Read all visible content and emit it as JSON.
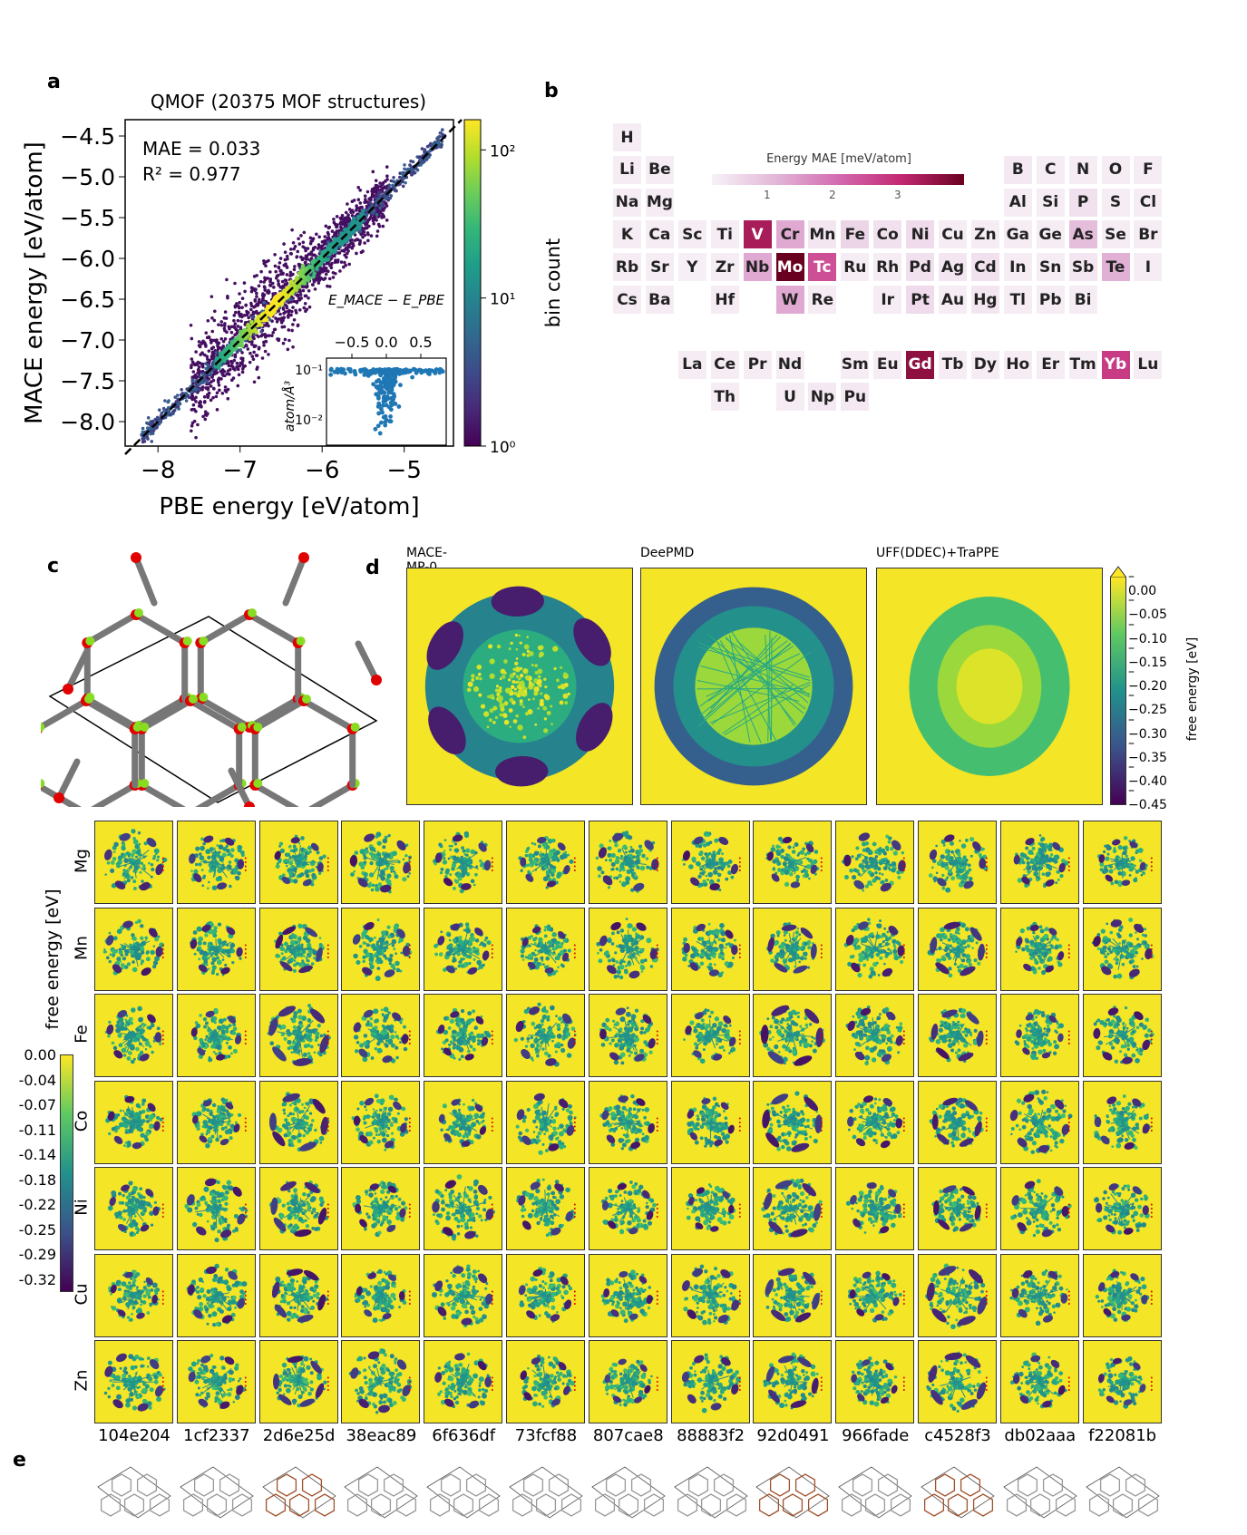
{
  "panel_letters": {
    "a": "a",
    "b": "b",
    "c": "c",
    "d": "d",
    "e": "e"
  },
  "colors": {
    "viridis_low": "#440154",
    "viridis_mid": "#21918c",
    "viridis_high": "#fde725",
    "pt_scale_low": "#f3eef4",
    "pt_scale_high": "#6a0020",
    "parity_line": "#000000",
    "inset_points": "#1f77b4"
  },
  "chart_data": [
    {
      "id": "a",
      "type": "scatter",
      "title": "QMOF (20375 MOF structures)",
      "xlabel": "PBE energy [eV/atom]",
      "ylabel": "MACE energy [eV/atom]",
      "xlim": [
        -8.4,
        -4.4
      ],
      "ylim": [
        -8.3,
        -4.3
      ],
      "xticks": [
        "−8",
        "−7",
        "−6",
        "−5"
      ],
      "xtick_values": [
        -8,
        -7,
        -6,
        -5
      ],
      "yticks": [
        "−4.5",
        "−5.0",
        "−5.5",
        "−6.0",
        "−6.5",
        "−7.0",
        "−7.5",
        "−8.0"
      ],
      "ytick_values": [
        -4.5,
        -5.0,
        -5.5,
        -6.0,
        -6.5,
        -7.0,
        -7.5,
        -8.0
      ],
      "annotations": [
        "MAE = 0.033",
        "R² = 0.977"
      ],
      "colorbar": {
        "label": "bin count",
        "scale": "log",
        "ticks": [
          "10²",
          "10¹",
          "10⁰"
        ],
        "tick_values": [
          100,
          10,
          1
        ]
      },
      "inset": {
        "xlabel": "E_MACE − E_PBE",
        "xticks": [
          "−0.5",
          "0.0",
          "0.5"
        ],
        "ylabel": "atom/Å³",
        "yticks": [
          "10⁻¹",
          "10⁻²"
        ],
        "scale": "log"
      }
    },
    {
      "id": "b",
      "type": "heatmap",
      "colorbar": {
        "label": "Energy MAE [meV/atom]",
        "ticks": [
          "1",
          "2",
          "3"
        ],
        "range": [
          0,
          4
        ]
      },
      "elements": [
        {
          "s": "H",
          "r": 0,
          "c": 0,
          "v": 0.1
        },
        {
          "s": "Li",
          "r": 1,
          "c": 0,
          "v": 0.1
        },
        {
          "s": "Be",
          "r": 1,
          "c": 1,
          "v": 0.1
        },
        {
          "s": "B",
          "r": 1,
          "c": 12,
          "v": 0.15
        },
        {
          "s": "C",
          "r": 1,
          "c": 13,
          "v": 0.1
        },
        {
          "s": "N",
          "r": 1,
          "c": 14,
          "v": 0.1
        },
        {
          "s": "O",
          "r": 1,
          "c": 15,
          "v": 0.1
        },
        {
          "s": "F",
          "r": 1,
          "c": 16,
          "v": 0.1
        },
        {
          "s": "Na",
          "r": 2,
          "c": 0,
          "v": 0.1
        },
        {
          "s": "Mg",
          "r": 2,
          "c": 1,
          "v": 0.1
        },
        {
          "s": "Al",
          "r": 2,
          "c": 12,
          "v": 0.1
        },
        {
          "s": "Si",
          "r": 2,
          "c": 13,
          "v": 0.1
        },
        {
          "s": "P",
          "r": 2,
          "c": 14,
          "v": 0.3
        },
        {
          "s": "S",
          "r": 2,
          "c": 15,
          "v": 0.1
        },
        {
          "s": "Cl",
          "r": 2,
          "c": 16,
          "v": 0.1
        },
        {
          "s": "K",
          "r": 3,
          "c": 0,
          "v": 0.1
        },
        {
          "s": "Ca",
          "r": 3,
          "c": 1,
          "v": 0.1
        },
        {
          "s": "Sc",
          "r": 3,
          "c": 2,
          "v": 0.1
        },
        {
          "s": "Ti",
          "r": 3,
          "c": 3,
          "v": 0.1
        },
        {
          "s": "V",
          "r": 3,
          "c": 4,
          "v": 3.3
        },
        {
          "s": "Cr",
          "r": 3,
          "c": 5,
          "v": 1.2
        },
        {
          "s": "Mn",
          "r": 3,
          "c": 6,
          "v": 0.2
        },
        {
          "s": "Fe",
          "r": 3,
          "c": 7,
          "v": 0.5
        },
        {
          "s": "Co",
          "r": 3,
          "c": 8,
          "v": 0.3
        },
        {
          "s": "Ni",
          "r": 3,
          "c": 9,
          "v": 0.4
        },
        {
          "s": "Cu",
          "r": 3,
          "c": 10,
          "v": 0.1
        },
        {
          "s": "Zn",
          "r": 3,
          "c": 11,
          "v": 0.1
        },
        {
          "s": "Ga",
          "r": 3,
          "c": 12,
          "v": 0.1
        },
        {
          "s": "Ge",
          "r": 3,
          "c": 13,
          "v": 0.1
        },
        {
          "s": "As",
          "r": 3,
          "c": 14,
          "v": 0.9
        },
        {
          "s": "Se",
          "r": 3,
          "c": 15,
          "v": 0.1
        },
        {
          "s": "Br",
          "r": 3,
          "c": 16,
          "v": 0.1
        },
        {
          "s": "Rb",
          "r": 4,
          "c": 0,
          "v": 0.1
        },
        {
          "s": "Sr",
          "r": 4,
          "c": 1,
          "v": 0.1
        },
        {
          "s": "Y",
          "r": 4,
          "c": 2,
          "v": 0.05
        },
        {
          "s": "Zr",
          "r": 4,
          "c": 3,
          "v": 0.1
        },
        {
          "s": "Nb",
          "r": 4,
          "c": 4,
          "v": 1.2
        },
        {
          "s": "Mo",
          "r": 4,
          "c": 5,
          "v": 4.0
        },
        {
          "s": "Tc",
          "r": 4,
          "c": 6,
          "v": 2.4
        },
        {
          "s": "Ru",
          "r": 4,
          "c": 7,
          "v": 0.1
        },
        {
          "s": "Rh",
          "r": 4,
          "c": 8,
          "v": 0.1
        },
        {
          "s": "Pd",
          "r": 4,
          "c": 9,
          "v": 0.3
        },
        {
          "s": "Ag",
          "r": 4,
          "c": 10,
          "v": 0.2
        },
        {
          "s": "Cd",
          "r": 4,
          "c": 11,
          "v": 0.3
        },
        {
          "s": "In",
          "r": 4,
          "c": 12,
          "v": 0.1
        },
        {
          "s": "Sn",
          "r": 4,
          "c": 13,
          "v": 0.1
        },
        {
          "s": "Sb",
          "r": 4,
          "c": 14,
          "v": 0.2
        },
        {
          "s": "Te",
          "r": 4,
          "c": 15,
          "v": 1.1
        },
        {
          "s": "I",
          "r": 4,
          "c": 16,
          "v": 0.1
        },
        {
          "s": "Cs",
          "r": 5,
          "c": 0,
          "v": 0.1
        },
        {
          "s": "Ba",
          "r": 5,
          "c": 1,
          "v": 0.1
        },
        {
          "s": "Hf",
          "r": 5,
          "c": 3,
          "v": 0.1
        },
        {
          "s": "W",
          "r": 5,
          "c": 5,
          "v": 1.2
        },
        {
          "s": "Re",
          "r": 5,
          "c": 6,
          "v": 0.1
        },
        {
          "s": "Ir",
          "r": 5,
          "c": 8,
          "v": 0.1
        },
        {
          "s": "Pt",
          "r": 5,
          "c": 9,
          "v": 0.4
        },
        {
          "s": "Au",
          "r": 5,
          "c": 10,
          "v": 0.1
        },
        {
          "s": "Hg",
          "r": 5,
          "c": 11,
          "v": 0.2
        },
        {
          "s": "Tl",
          "r": 5,
          "c": 12,
          "v": 0.1
        },
        {
          "s": "Pb",
          "r": 5,
          "c": 13,
          "v": 0.1
        },
        {
          "s": "Bi",
          "r": 5,
          "c": 14,
          "v": 0.1
        },
        {
          "s": "La",
          "r": 7,
          "c": 2,
          "v": 0.1
        },
        {
          "s": "Ce",
          "r": 7,
          "c": 3,
          "v": 0.1
        },
        {
          "s": "Pr",
          "r": 7,
          "c": 4,
          "v": 0.1
        },
        {
          "s": "Nd",
          "r": 7,
          "c": 5,
          "v": 0.1
        },
        {
          "s": "Sm",
          "r": 7,
          "c": 7,
          "v": 0.1
        },
        {
          "s": "Eu",
          "r": 7,
          "c": 8,
          "v": 0.1
        },
        {
          "s": "Gd",
          "r": 7,
          "c": 9,
          "v": 3.6
        },
        {
          "s": "Tb",
          "r": 7,
          "c": 10,
          "v": 0.1
        },
        {
          "s": "Dy",
          "r": 7,
          "c": 11,
          "v": 0.1
        },
        {
          "s": "Ho",
          "r": 7,
          "c": 12,
          "v": 0.1
        },
        {
          "s": "Er",
          "r": 7,
          "c": 13,
          "v": 0.1
        },
        {
          "s": "Tm",
          "r": 7,
          "c": 14,
          "v": 0.1
        },
        {
          "s": "Yb",
          "r": 7,
          "c": 15,
          "v": 2.7
        },
        {
          "s": "Lu",
          "r": 7,
          "c": 16,
          "v": 0.1
        },
        {
          "s": "Th",
          "r": 8,
          "c": 3,
          "v": 0.1
        },
        {
          "s": "U",
          "r": 8,
          "c": 5,
          "v": 0.1
        },
        {
          "s": "Np",
          "r": 8,
          "c": 6,
          "v": 0.15
        },
        {
          "s": "Pu",
          "r": 8,
          "c": 7,
          "v": 0.15
        }
      ]
    },
    {
      "id": "d",
      "type": "heatmap",
      "maps": [
        {
          "label": "MACE-MP-0"
        },
        {
          "label": "DeePMD"
        },
        {
          "label": "UFF(DDEC)+TraPPE"
        }
      ],
      "colorbar": {
        "label": "free energy [eV]",
        "ticks": [
          "0.00",
          "−0.05",
          "−0.10",
          "−0.15",
          "−0.20",
          "−0.25",
          "−0.30",
          "−0.35",
          "−0.40",
          "−0.45"
        ],
        "range": [
          -0.48,
          0.0
        ]
      }
    },
    {
      "id": "grid",
      "type": "heatmap",
      "rows": [
        "Mg",
        "Mn",
        "Fe",
        "Co",
        "Ni",
        "Cu",
        "Zn"
      ],
      "columns": [
        "104e204",
        "1cf2337",
        "2d6e25d",
        "38eac89",
        "6f636df",
        "73fcf88",
        "807cae8",
        "88883f2",
        "92d0491",
        "966fade",
        "c4528f3",
        "db02aaa",
        "f22081b"
      ],
      "colorbar": {
        "label": "free energy [eV]",
        "ticks": [
          "0.00",
          "-0.04",
          "-0.07",
          "-0.11",
          "-0.14",
          "-0.18",
          "-0.22",
          "-0.25",
          "-0.29",
          "-0.32"
        ],
        "range": [
          -0.35,
          0.0
        ]
      }
    }
  ]
}
